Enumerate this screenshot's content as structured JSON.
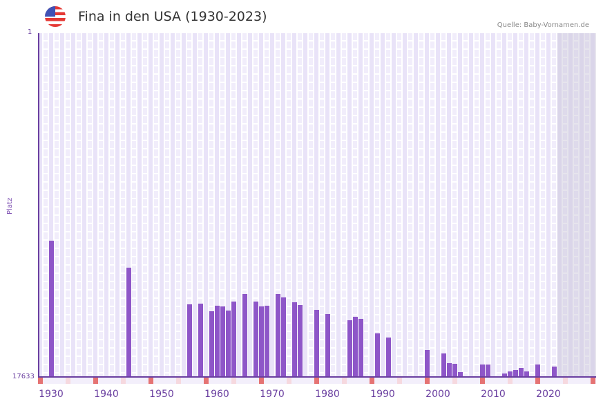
{
  "header": {
    "title": "Fina in den USA (1930-2023)",
    "source": "Quelle: Baby-Vornamen.de",
    "flag_icon": "us-flag-icon"
  },
  "axis": {
    "y_title": "Platz",
    "y_top_label": "1",
    "y_bottom_label": "17633",
    "x_labels": [
      "1930",
      "1940",
      "1950",
      "1960",
      "1970",
      "1980",
      "1990",
      "2000",
      "2010",
      "2020"
    ]
  },
  "colors": {
    "bar": "#8e56c8",
    "axis": "#6a3fa0",
    "decade_tick": "#e57373",
    "half_decade_tick": "#f6d9df",
    "plot_bg": "#f1edfb"
  },
  "chart_data": {
    "type": "bar",
    "title": "Fina in den USA (1930-2023)",
    "xlabel": "",
    "ylabel": "Platz",
    "y_inverted": true,
    "ylim": [
      17633,
      1
    ],
    "x_range": [
      1928,
      2028
    ],
    "shaded_region": [
      2024,
      2028
    ],
    "grid": true,
    "legend": null,
    "categories": [
      1930,
      1944,
      1955,
      1957,
      1959,
      1960,
      1961,
      1962,
      1963,
      1965,
      1967,
      1968,
      1969,
      1971,
      1972,
      1974,
      1975,
      1978,
      1980,
      1984,
      1985,
      1986,
      1989,
      1991,
      1998,
      2001,
      2002,
      2003,
      2004,
      2006,
      2008,
      2009,
      2012,
      2013,
      2014,
      2015,
      2016,
      2018,
      2021
    ],
    "values": [
      10653,
      12037,
      13917,
      13882,
      14272,
      13988,
      14023,
      14236,
      13775,
      13385,
      13775,
      14023,
      13988,
      13385,
      13562,
      13811,
      13953,
      14201,
      14414,
      14733,
      14556,
      14662,
      15407,
      15620,
      16258,
      16435,
      16932,
      16967,
      17393,
      17748,
      17003,
      17003,
      17464,
      17357,
      17287,
      17180,
      17357,
      17003,
      17109
    ]
  }
}
